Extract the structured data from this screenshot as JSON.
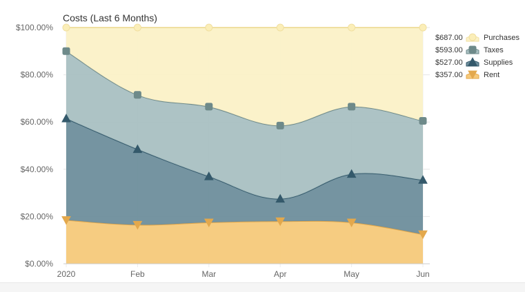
{
  "chart_data": {
    "type": "area",
    "stacked": "percent",
    "title": "Costs (Last 6 Months)",
    "categories": [
      "2020",
      "Feb",
      "Mar",
      "Apr",
      "May",
      "Jun"
    ],
    "y_tick_labels": [
      "$0.00%",
      "$20.00%",
      "$40.00%",
      "$60.00%",
      "$80.00%",
      "$100.00%"
    ],
    "ylim": [
      0,
      100
    ],
    "grid": true,
    "legend_position": "right",
    "series": [
      {
        "name": "Rent",
        "legend_value": "$357.00",
        "marker": "triangle-down",
        "color": "#f6c97a",
        "line_color": "#e3a84c",
        "values": [
          18.5,
          16.5,
          17.5,
          18.0,
          17.5,
          12.5
        ]
      },
      {
        "name": "Supplies",
        "legend_value": "$527.00",
        "marker": "triangle-up",
        "color": "#6e8e9c",
        "line_color": "#34596b",
        "values": [
          43.0,
          32.0,
          19.5,
          9.5,
          20.5,
          23.0
        ]
      },
      {
        "name": "Taxes",
        "legend_value": "$593.00",
        "marker": "square",
        "color": "#a9c0c2",
        "line_color": "#6e8a8a",
        "values": [
          28.5,
          23.0,
          29.5,
          31.0,
          28.5,
          25.0
        ]
      },
      {
        "name": "Purchases",
        "legend_value": "$687.00",
        "marker": "circle",
        "color": "#fbf1c7",
        "line_color": "#f0dfa0",
        "values": [
          10.0,
          28.5,
          33.5,
          41.5,
          33.5,
          39.5
        ]
      }
    ]
  }
}
